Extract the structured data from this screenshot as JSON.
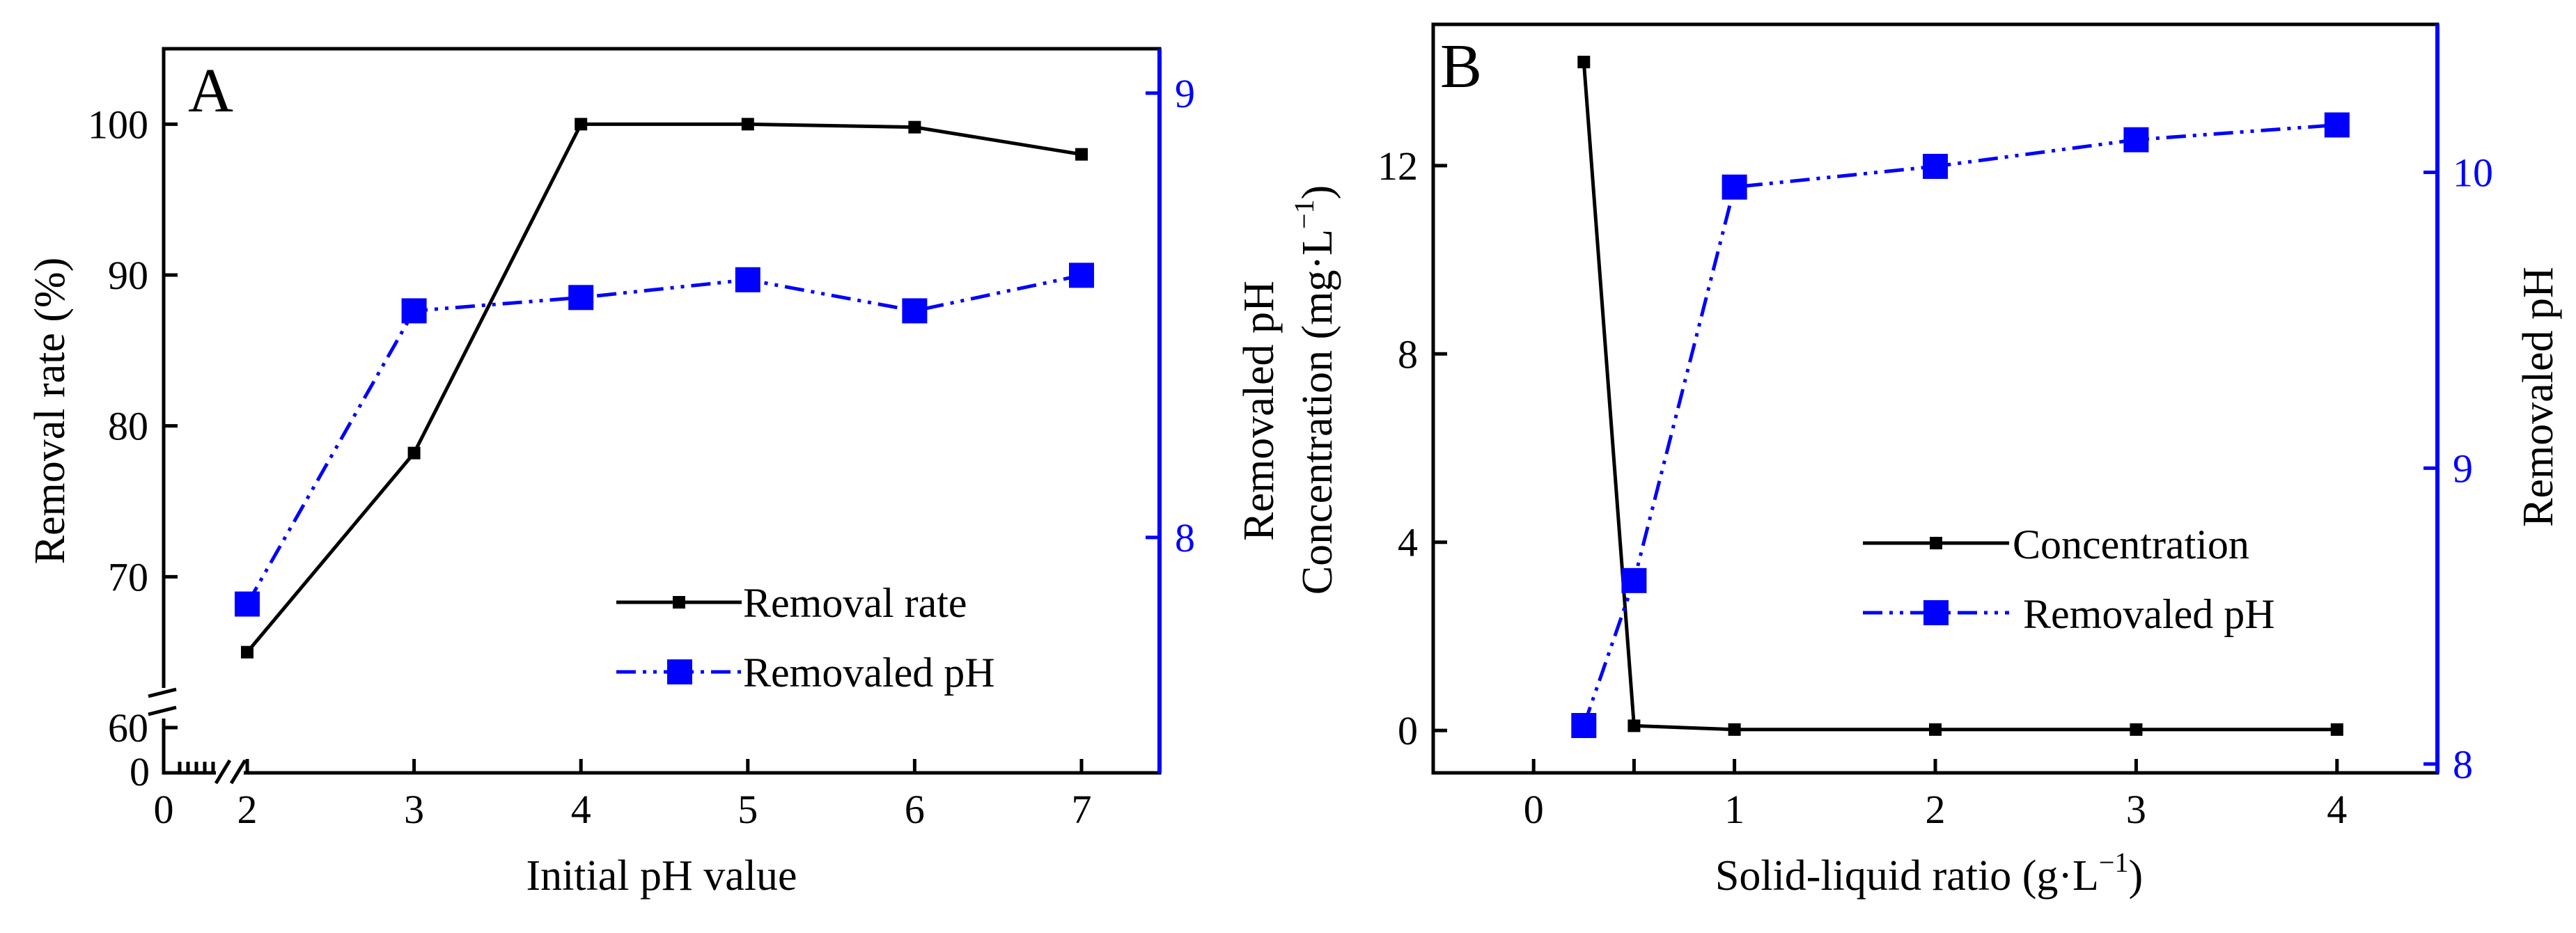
{
  "colors": {
    "series_removal": "#000000",
    "series_ph": "#0000ff",
    "right_axis": "#0000ff",
    "left_axis": "#000000",
    "background": "#ffffff"
  },
  "chart_data": [
    {
      "type": "line",
      "panel_label": "A",
      "title": "",
      "xlabel": "Initial pH value",
      "ylabel": "Removal rate (%)",
      "ylabel_right": "Removaled pH",
      "xlim": [
        0,
        7.5
      ],
      "x_ticks": [
        "0",
        "2",
        "3",
        "4",
        "5",
        "6",
        "7"
      ],
      "ylim": [
        57,
        105
      ],
      "y_ticks": [
        "60",
        "70",
        "80",
        "90",
        "100"
      ],
      "y_break_label": "0",
      "ylim_right": [
        7.47,
        9.1
      ],
      "y_ticks_right": [
        "8",
        "9"
      ],
      "legend_position": "bottom-right",
      "grid": false,
      "series": [
        {
          "name": "Removal rate",
          "axis": "left",
          "style": "solid",
          "marker": "small-square",
          "x": [
            2,
            3,
            4,
            5,
            6,
            7
          ],
          "values": [
            65,
            78.2,
            100,
            100,
            99.8,
            98
          ]
        },
        {
          "name": "Removaled pH",
          "axis": "right",
          "style": "dash-dot-dot",
          "marker": "large-square",
          "x": [
            2,
            3,
            4,
            5,
            6,
            7
          ],
          "values": [
            7.85,
            8.51,
            8.54,
            8.58,
            8.51,
            8.59
          ]
        }
      ]
    },
    {
      "type": "line",
      "panel_label": "B",
      "title": "",
      "xlabel": "Solid-liquid ratio (g·L",
      "xlabel_sup": "−1",
      "xlabel_end": ")",
      "ylabel": "Concentration (mg·L",
      "ylabel_sup": "−1",
      "ylabel_end": ")",
      "ylabel_right": "Removaled pH",
      "xlim": [
        -0.5,
        4.5
      ],
      "x_ticks": [
        "0",
        "0.5",
        "1",
        "2",
        "3",
        "4"
      ],
      "x_tick_labels": [
        "0",
        "",
        "1",
        "2",
        "3",
        "4"
      ],
      "ylim": [
        -0.9,
        15
      ],
      "y_ticks": [
        "0",
        "4",
        "8",
        "12"
      ],
      "ylim_right": [
        7.97,
        10.5
      ],
      "y_ticks_right": [
        "8",
        "9",
        "10"
      ],
      "legend_position": "bottom-right",
      "grid": false,
      "series": [
        {
          "name": "Concentration",
          "axis": "left",
          "style": "solid",
          "marker": "small-square",
          "x": [
            0.25,
            0.5,
            1,
            2,
            3,
            4
          ],
          "values": [
            14.2,
            0.1,
            0.02,
            0.02,
            0.02,
            0.02
          ]
        },
        {
          "name": "Removaled pH",
          "axis": "right",
          "style": "dash-dot-dot",
          "marker": "large-square",
          "x": [
            0.25,
            0.5,
            1,
            2,
            3,
            4
          ],
          "values": [
            8.13,
            8.62,
            9.95,
            10.02,
            10.11,
            10.16
          ]
        }
      ]
    }
  ]
}
